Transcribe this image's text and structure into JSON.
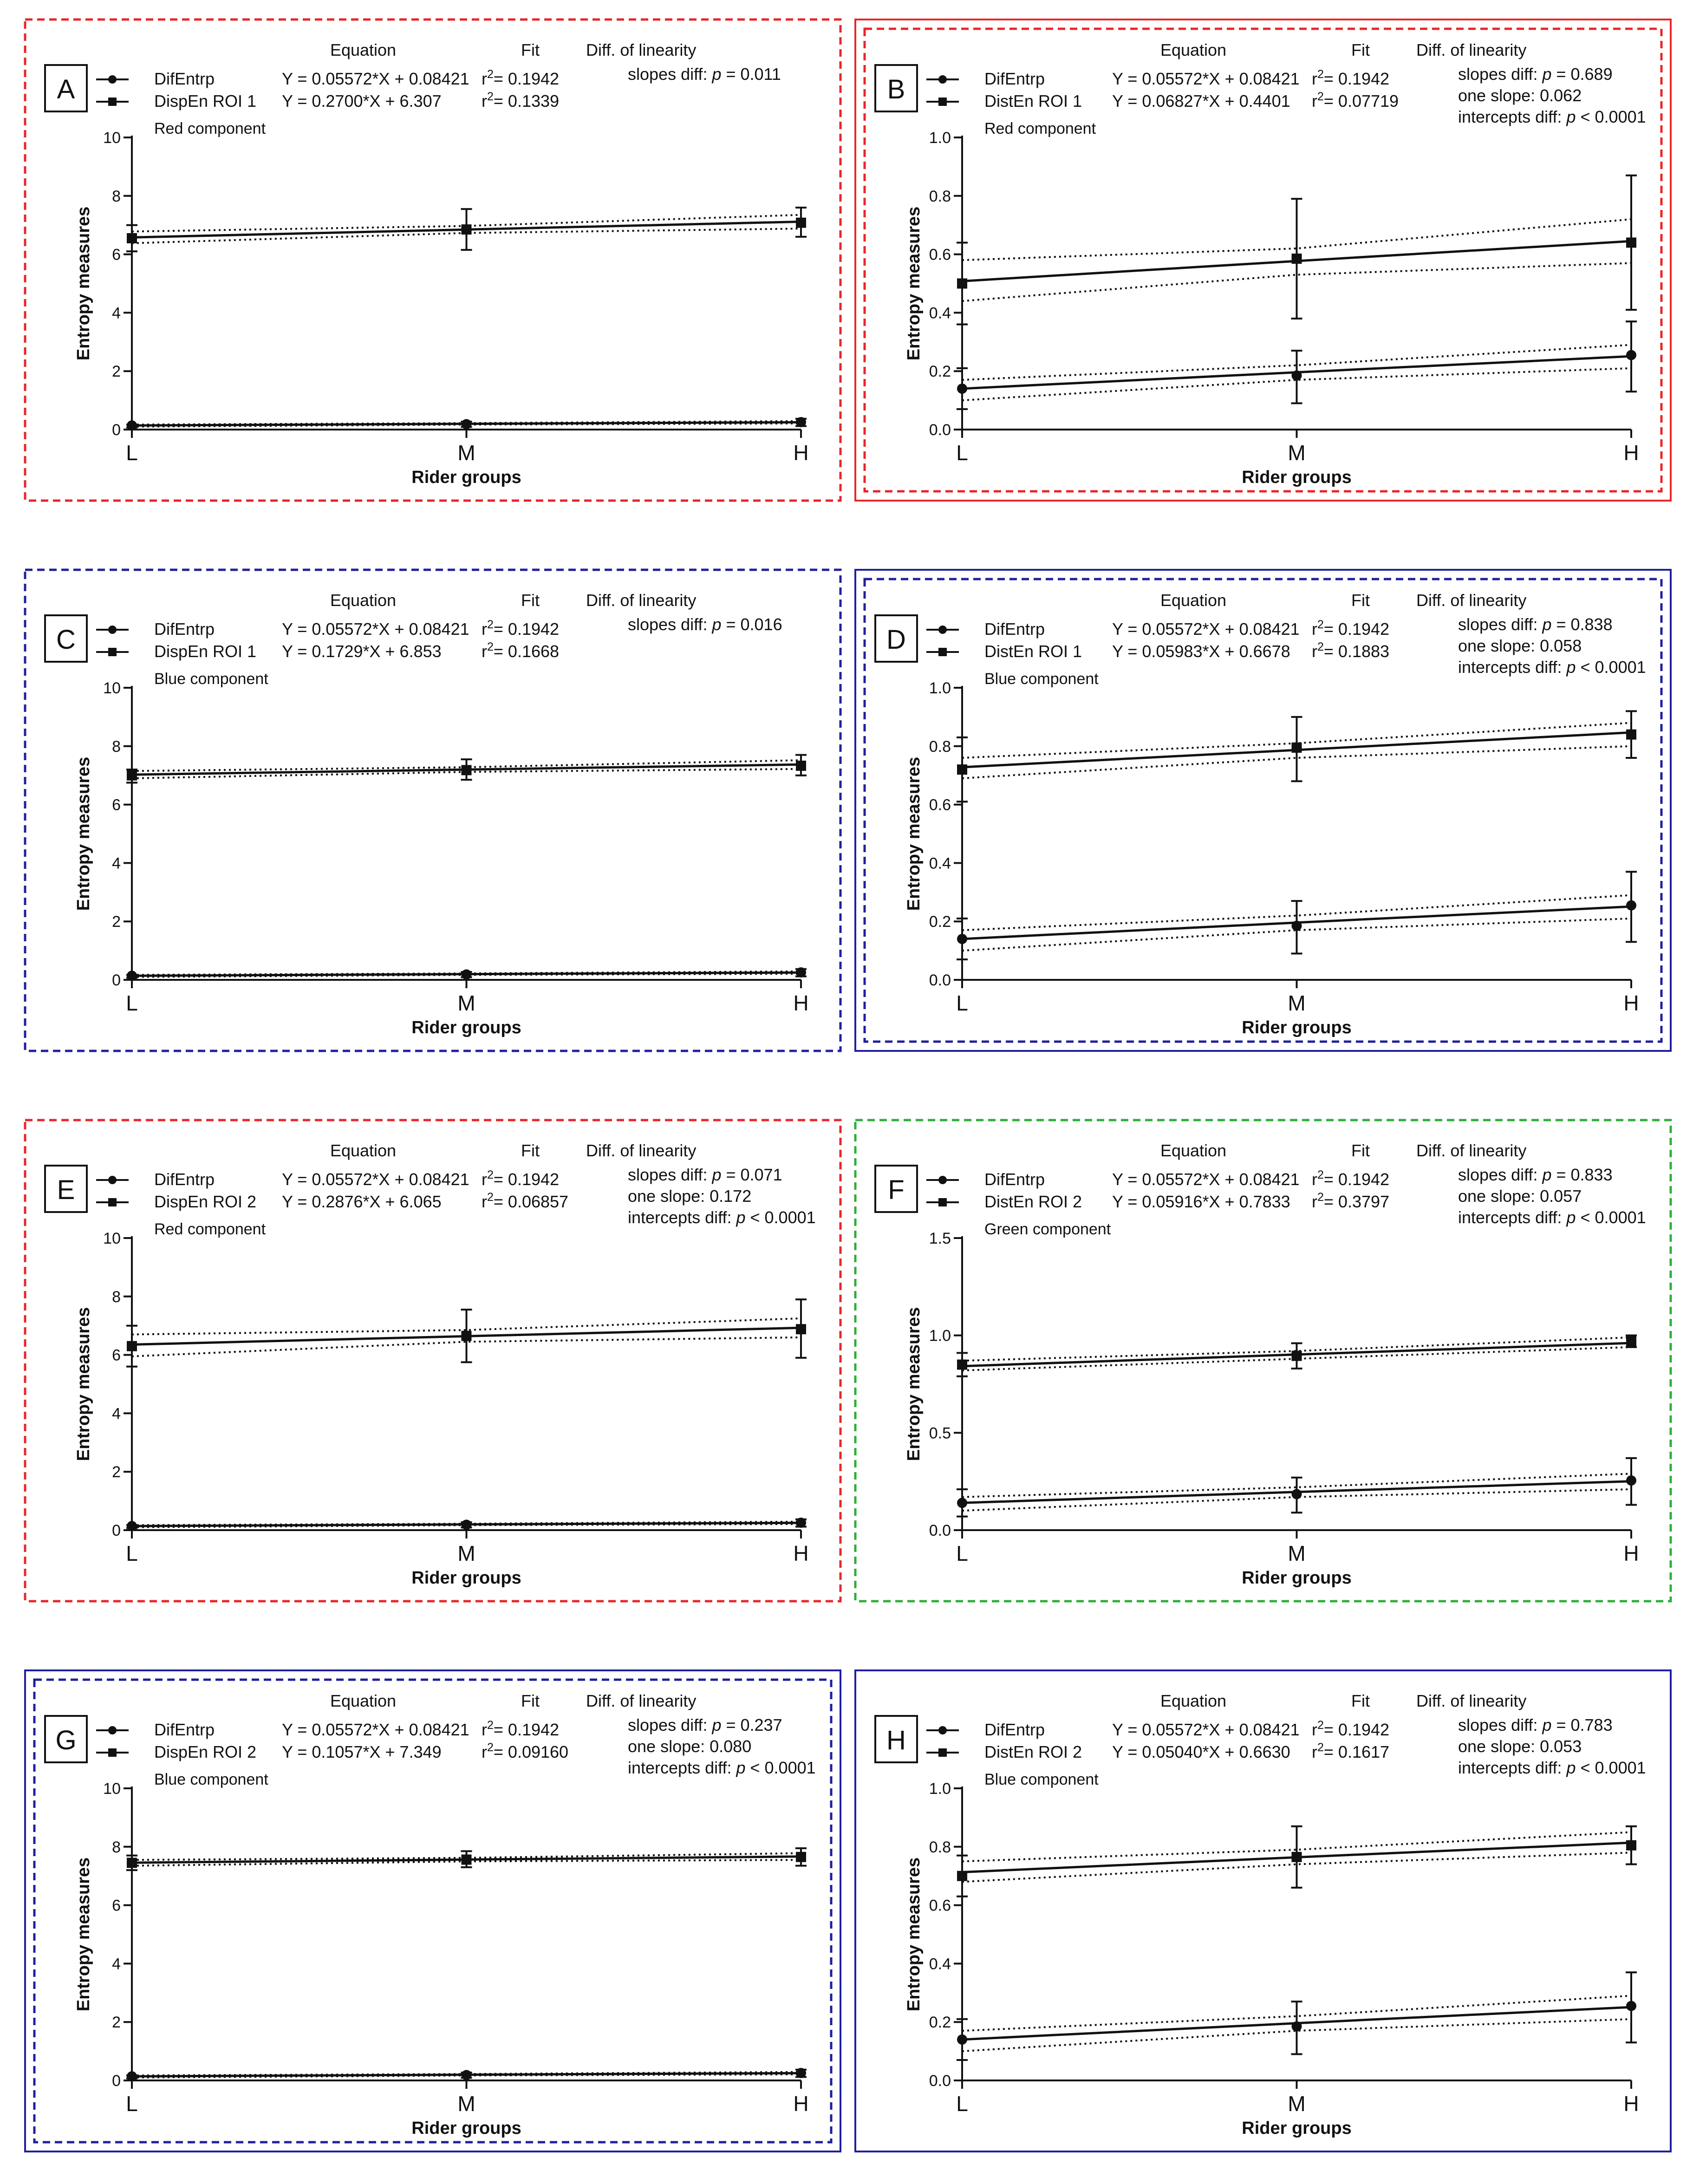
{
  "figure": {
    "x_axis_label": "Rider groups",
    "y_axis_label": "Entropy measures",
    "header_equation": "Equation",
    "header_fit": "Fit",
    "header_linearity": "Diff. of linearity",
    "x_ticks": [
      "L",
      "M",
      "H"
    ],
    "colors": {
      "red": "#e8262a",
      "blue": "#1f1f9e",
      "green": "#2fae3a",
      "ink": "#111111"
    }
  },
  "chart_data": [
    {
      "type": "line",
      "letter": "A",
      "component": "Red component",
      "frame": "red",
      "frame_style": "dashed",
      "ylim": [
        0,
        10
      ],
      "yticks": [
        "0",
        "2",
        "4",
        "6",
        "8",
        "10"
      ],
      "x": [
        "L",
        "M",
        "H"
      ],
      "series": [
        {
          "name": "DifEntrp",
          "marker": "circle",
          "equation": "Y = 0.05572*X + 0.08421",
          "r2": "0.1942",
          "values": [
            0.14,
            0.185,
            0.255
          ],
          "err_low": [
            0.07,
            0.09,
            0.12
          ],
          "err_high": [
            0.17,
            0.27,
            0.37
          ],
          "fit": [
            0.14,
            0.196,
            0.251
          ],
          "band_low": [
            0.1,
            0.17,
            0.21
          ],
          "band_high": [
            0.17,
            0.22,
            0.29
          ]
        },
        {
          "name": "DispEn ROI 1",
          "marker": "square",
          "equation": "Y = 0.2700*X + 6.307",
          "r2": "0.1339",
          "values": [
            6.55,
            6.85,
            7.08
          ],
          "err_low": [
            6.1,
            6.15,
            6.6
          ],
          "err_high": [
            7.0,
            7.55,
            7.6
          ],
          "fit": [
            6.577,
            6.847,
            7.117
          ],
          "band_low": [
            6.38,
            6.73,
            6.88
          ],
          "band_high": [
            6.78,
            6.97,
            7.35
          ]
        }
      ],
      "stats": [
        "slopes diff: p = 0.011"
      ]
    },
    {
      "type": "line",
      "letter": "B",
      "component": "Red component",
      "frame": "red",
      "frame_style": "solid",
      "ylim": [
        0,
        1.0
      ],
      "yticks": [
        "0.0",
        "0.2",
        "0.4",
        "0.6",
        "0.8",
        "1.0"
      ],
      "x": [
        "L",
        "M",
        "H"
      ],
      "series": [
        {
          "name": "DifEntrp",
          "marker": "circle",
          "equation": "Y = 0.05572*X + 0.08421",
          "r2": "0.1942",
          "values": [
            0.14,
            0.185,
            0.255
          ],
          "err_low": [
            0.07,
            0.09,
            0.13
          ],
          "err_high": [
            0.21,
            0.27,
            0.37
          ],
          "fit": [
            0.14,
            0.196,
            0.251
          ],
          "band_low": [
            0.1,
            0.17,
            0.21
          ],
          "band_high": [
            0.17,
            0.22,
            0.29
          ]
        },
        {
          "name": "DistEn ROI 1",
          "marker": "square",
          "equation": "Y = 0.06827*X + 0.4401",
          "r2": "0.07719",
          "values": [
            0.5,
            0.585,
            0.64
          ],
          "err_low": [
            0.36,
            0.38,
            0.41
          ],
          "err_high": [
            0.64,
            0.79,
            0.87
          ],
          "fit": [
            0.508,
            0.577,
            0.645
          ],
          "band_low": [
            0.44,
            0.53,
            0.57
          ],
          "band_high": [
            0.58,
            0.62,
            0.72
          ]
        }
      ],
      "stats": [
        "slopes diff: p = 0.689",
        "one slope: 0.062",
        "intercepts diff: p < 0.0001"
      ]
    },
    {
      "type": "line",
      "letter": "C",
      "component": "Blue component",
      "frame": "blue",
      "frame_style": "dashed",
      "ylim": [
        0,
        10
      ],
      "yticks": [
        "0",
        "2",
        "4",
        "6",
        "8",
        "10"
      ],
      "x": [
        "L",
        "M",
        "H"
      ],
      "series": [
        {
          "name": "DifEntrp",
          "marker": "circle",
          "equation": "Y = 0.05572*X + 0.08421",
          "r2": "0.1942",
          "values": [
            0.14,
            0.185,
            0.255
          ],
          "err_low": [
            0.07,
            0.09,
            0.12
          ],
          "err_high": [
            0.17,
            0.27,
            0.37
          ],
          "fit": [
            0.14,
            0.196,
            0.251
          ],
          "band_low": [
            0.1,
            0.17,
            0.21
          ],
          "band_high": [
            0.17,
            0.22,
            0.29
          ]
        },
        {
          "name": "DispEn ROI 1",
          "marker": "square",
          "equation": "Y = 0.1729*X + 6.853",
          "r2": "0.1668",
          "values": [
            7.0,
            7.18,
            7.33
          ],
          "err_low": [
            6.75,
            6.85,
            7.0
          ],
          "err_high": [
            7.2,
            7.55,
            7.7
          ],
          "fit": [
            7.026,
            7.199,
            7.372
          ],
          "band_low": [
            6.9,
            7.12,
            7.22
          ],
          "band_high": [
            7.15,
            7.28,
            7.52
          ]
        }
      ],
      "stats": [
        "slopes diff: p = 0.016"
      ]
    },
    {
      "type": "line",
      "letter": "D",
      "component": "Blue component",
      "frame": "blue",
      "frame_style": "solid",
      "ylim": [
        0,
        1.0
      ],
      "yticks": [
        "0.0",
        "0.2",
        "0.4",
        "0.6",
        "0.8",
        "1.0"
      ],
      "x": [
        "L",
        "M",
        "H"
      ],
      "series": [
        {
          "name": "DifEntrp",
          "marker": "circle",
          "equation": "Y = 0.05572*X + 0.08421",
          "r2": "0.1942",
          "values": [
            0.14,
            0.185,
            0.255
          ],
          "err_low": [
            0.07,
            0.09,
            0.13
          ],
          "err_high": [
            0.21,
            0.27,
            0.37
          ],
          "fit": [
            0.14,
            0.196,
            0.251
          ],
          "band_low": [
            0.1,
            0.17,
            0.21
          ],
          "band_high": [
            0.17,
            0.22,
            0.29
          ]
        },
        {
          "name": "DistEn ROI 1",
          "marker": "square",
          "equation": "Y = 0.05983*X + 0.6678",
          "r2": "0.1883",
          "values": [
            0.72,
            0.795,
            0.84
          ],
          "err_low": [
            0.61,
            0.68,
            0.76
          ],
          "err_high": [
            0.83,
            0.9,
            0.92
          ],
          "fit": [
            0.728,
            0.787,
            0.847
          ],
          "band_low": [
            0.69,
            0.76,
            0.8
          ],
          "band_high": [
            0.76,
            0.81,
            0.88
          ]
        }
      ],
      "stats": [
        "slopes diff: p = 0.838",
        "one slope: 0.058",
        "intercepts diff: p < 0.0001"
      ]
    },
    {
      "type": "line",
      "letter": "E",
      "component": "Red component",
      "frame": "red",
      "frame_style": "dashed",
      "ylim": [
        0,
        10
      ],
      "yticks": [
        "0",
        "2",
        "4",
        "6",
        "8",
        "10"
      ],
      "x": [
        "L",
        "M",
        "H"
      ],
      "series": [
        {
          "name": "DifEntrp",
          "marker": "circle",
          "equation": "Y = 0.05572*X + 0.08421",
          "r2": "0.1942",
          "values": [
            0.14,
            0.185,
            0.255
          ],
          "err_low": [
            0.07,
            0.09,
            0.12
          ],
          "err_high": [
            0.17,
            0.27,
            0.37
          ],
          "fit": [
            0.14,
            0.196,
            0.251
          ],
          "band_low": [
            0.1,
            0.17,
            0.21
          ],
          "band_high": [
            0.17,
            0.22,
            0.29
          ]
        },
        {
          "name": "DispEn ROI 2",
          "marker": "square",
          "equation": "Y = 0.2876*X + 6.065",
          "r2": "0.06857",
          "values": [
            6.3,
            6.65,
            6.88
          ],
          "err_low": [
            5.6,
            5.75,
            5.9
          ],
          "err_high": [
            7.0,
            7.55,
            7.9
          ],
          "fit": [
            6.353,
            6.64,
            6.928
          ],
          "band_low": [
            5.95,
            6.45,
            6.6
          ],
          "band_high": [
            6.7,
            6.85,
            7.25
          ]
        }
      ],
      "stats": [
        "slopes diff: p = 0.071",
        "one slope: 0.172",
        "intercepts diff: p < 0.0001"
      ]
    },
    {
      "type": "line",
      "letter": "F",
      "component": "Green component",
      "frame": "green",
      "frame_style": "dashed",
      "ylim": [
        0,
        1.5
      ],
      "yticks": [
        "0.0",
        "0.5",
        "1.0",
        "1.5"
      ],
      "x": [
        "L",
        "M",
        "H"
      ],
      "series": [
        {
          "name": "DifEntrp",
          "marker": "circle",
          "equation": "Y = 0.05572*X + 0.08421",
          "r2": "0.1942",
          "values": [
            0.14,
            0.185,
            0.255
          ],
          "err_low": [
            0.07,
            0.09,
            0.13
          ],
          "err_high": [
            0.21,
            0.27,
            0.37
          ],
          "fit": [
            0.14,
            0.196,
            0.251
          ],
          "band_low": [
            0.1,
            0.17,
            0.21
          ],
          "band_high": [
            0.17,
            0.22,
            0.29
          ]
        },
        {
          "name": "DistEn ROI 2",
          "marker": "square",
          "equation": "Y = 0.05916*X + 0.7833",
          "r2": "0.3797",
          "values": [
            0.85,
            0.895,
            0.97
          ],
          "err_low": [
            0.79,
            0.83,
            0.94
          ],
          "err_high": [
            0.91,
            0.96,
            1.0
          ],
          "fit": [
            0.842,
            0.902,
            0.961
          ],
          "band_low": [
            0.82,
            0.88,
            0.94
          ],
          "band_high": [
            0.87,
            0.92,
            0.99
          ]
        }
      ],
      "stats": [
        "slopes diff: p = 0.833",
        "one slope: 0.057",
        "intercepts diff: p < 0.0001"
      ]
    },
    {
      "type": "line",
      "letter": "G",
      "component": "Blue component",
      "frame": "blue",
      "frame_style": "double",
      "ylim": [
        0,
        10
      ],
      "yticks": [
        "0",
        "2",
        "4",
        "6",
        "8",
        "10"
      ],
      "x": [
        "L",
        "M",
        "H"
      ],
      "series": [
        {
          "name": "DifEntrp",
          "marker": "circle",
          "equation": "Y = 0.05572*X + 0.08421",
          "r2": "0.1942",
          "values": [
            0.14,
            0.185,
            0.255
          ],
          "err_low": [
            0.07,
            0.09,
            0.12
          ],
          "err_high": [
            0.17,
            0.27,
            0.37
          ],
          "fit": [
            0.14,
            0.196,
            0.251
          ],
          "band_low": [
            0.1,
            0.17,
            0.21
          ],
          "band_high": [
            0.17,
            0.22,
            0.29
          ]
        },
        {
          "name": "DispEn ROI 2",
          "marker": "square",
          "equation": "Y = 0.1057*X + 7.349",
          "r2": "0.09160",
          "values": [
            7.45,
            7.56,
            7.65
          ],
          "err_low": [
            7.2,
            7.3,
            7.35
          ],
          "err_high": [
            7.7,
            7.85,
            7.95
          ],
          "fit": [
            7.455,
            7.561,
            7.666
          ],
          "band_low": [
            7.35,
            7.5,
            7.55
          ],
          "band_high": [
            7.55,
            7.62,
            7.78
          ]
        }
      ],
      "stats": [
        "slopes diff: p = 0.237",
        "one slope: 0.080",
        "intercepts diff: p < 0.0001"
      ]
    },
    {
      "type": "line",
      "letter": "H",
      "component": "Blue component",
      "frame": "blue",
      "frame_style": "solid",
      "ylim": [
        0,
        1.0
      ],
      "yticks": [
        "0.0",
        "0.2",
        "0.4",
        "0.6",
        "0.8",
        "1.0"
      ],
      "x": [
        "L",
        "M",
        "H"
      ],
      "series": [
        {
          "name": "DifEntrp",
          "marker": "circle",
          "equation": "Y = 0.05572*X + 0.08421",
          "r2": "0.1942",
          "values": [
            0.14,
            0.185,
            0.255
          ],
          "err_low": [
            0.07,
            0.09,
            0.13
          ],
          "err_high": [
            0.21,
            0.27,
            0.37
          ],
          "fit": [
            0.14,
            0.196,
            0.251
          ],
          "band_low": [
            0.1,
            0.17,
            0.21
          ],
          "band_high": [
            0.17,
            0.22,
            0.29
          ]
        },
        {
          "name": "DistEn ROI 2",
          "marker": "square",
          "equation": "Y = 0.05040*X + 0.6630",
          "r2": "0.1617",
          "values": [
            0.7,
            0.765,
            0.805
          ],
          "err_low": [
            0.63,
            0.66,
            0.74
          ],
          "err_high": [
            0.77,
            0.87,
            0.87
          ],
          "fit": [
            0.713,
            0.764,
            0.814
          ],
          "band_low": [
            0.68,
            0.74,
            0.78
          ],
          "band_high": [
            0.75,
            0.79,
            0.85
          ]
        }
      ],
      "stats": [
        "slopes diff: p = 0.783",
        "one slope: 0.053",
        "intercepts diff: p < 0.0001"
      ]
    }
  ]
}
